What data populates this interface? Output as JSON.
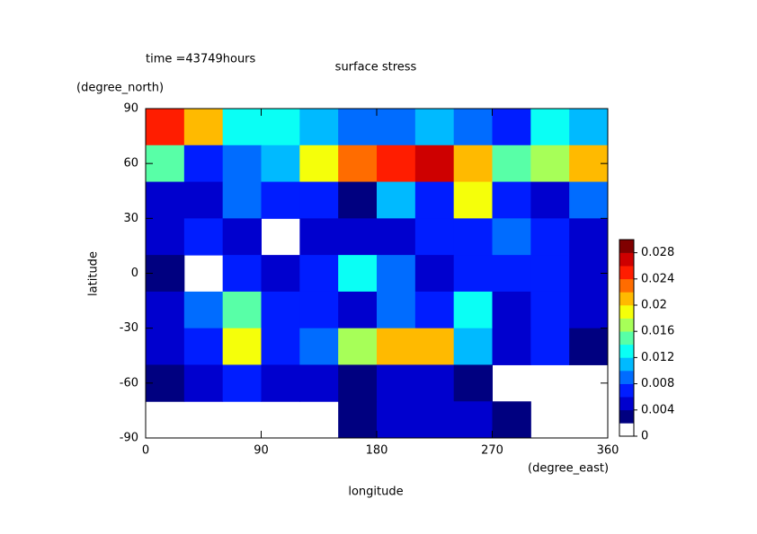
{
  "chart_data": {
    "type": "contour",
    "title": "surface stress",
    "subtitle": "time =43749hours",
    "x_label": "longitude",
    "x_unit": "(degree_east)",
    "y_label": "latitude",
    "y_unit": "(degree_north)",
    "x": [
      15,
      45,
      75,
      105,
      135,
      165,
      195,
      225,
      255,
      285,
      315,
      345
    ],
    "y": [
      80,
      60,
      40,
      20,
      0,
      -20,
      -40,
      -60,
      -80
    ],
    "z": [
      [
        0.024,
        0.02,
        0.012,
        0.012,
        0.01,
        0.008,
        0.008,
        0.01,
        0.008,
        0.006,
        0.012,
        0.01
      ],
      [
        0.014,
        0.006,
        0.008,
        0.01,
        0.018,
        0.022,
        0.024,
        0.026,
        0.02,
        0.014,
        0.016,
        0.02
      ],
      [
        0.004,
        0.004,
        0.008,
        0.006,
        0.006,
        0.002,
        0.01,
        0.006,
        0.018,
        0.006,
        0.004,
        0.008
      ],
      [
        0.004,
        0.006,
        0.004,
        0,
        0.004,
        0.004,
        0.004,
        0.006,
        0.006,
        0.008,
        0.006,
        0.004
      ],
      [
        0.002,
        0,
        0.006,
        0.004,
        0.006,
        0.012,
        0.008,
        0.004,
        0.006,
        0.006,
        0.006,
        0.004
      ],
      [
        0.004,
        0.008,
        0.014,
        0.006,
        0.006,
        0.004,
        0.008,
        0.006,
        0.012,
        0.004,
        0.006,
        0.004
      ],
      [
        0.004,
        0.006,
        0.018,
        0.006,
        0.008,
        0.016,
        0.02,
        0.02,
        0.01,
        0.004,
        0.006,
        0.002
      ],
      [
        0.002,
        0.004,
        0.006,
        0.004,
        0.004,
        0.002,
        0.004,
        0.004,
        0.002,
        0,
        0,
        0
      ],
      [
        0,
        0,
        0,
        0,
        0,
        0.002,
        0.004,
        0.004,
        0.004,
        0.002,
        0,
        0
      ]
    ],
    "xlim": [
      0,
      360
    ],
    "xticks": [
      0,
      90,
      180,
      270,
      360
    ],
    "ylim": [
      -90,
      90
    ],
    "yticks": [
      -90,
      -60,
      -30,
      0,
      30,
      60,
      90
    ],
    "clim": [
      0,
      0.03
    ],
    "cticks": [
      0,
      0.004,
      0.008,
      0.012,
      0.016,
      0.02,
      0.024,
      0.028
    ],
    "colormap": "jet"
  }
}
